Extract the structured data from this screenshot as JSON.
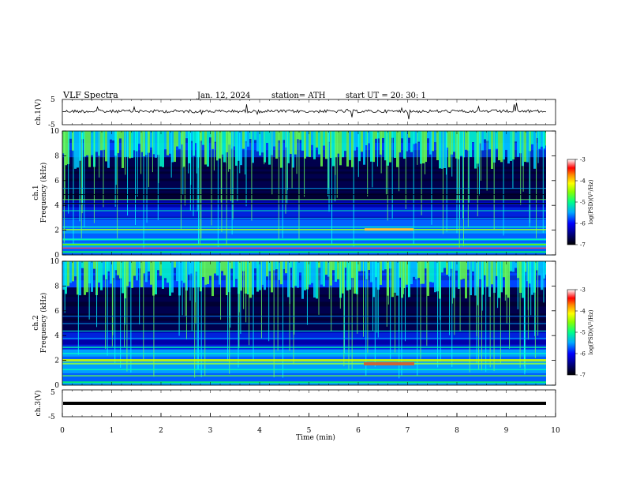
{
  "header": {
    "title": "VLF  Spectra",
    "date": "Jan. 12, 2024",
    "station": "station= ATH",
    "start": "start  UT  =    20: 30: 1"
  },
  "chart_data": [
    {
      "type": "line",
      "panel": "ch1-waveform",
      "ylabel": "ch.1(V)",
      "ylim": [
        -5,
        5
      ],
      "yticks": [
        "5",
        "-5"
      ],
      "xlim": [
        0,
        10
      ]
    },
    {
      "type": "heatmap",
      "panel": "ch1-spectrogram",
      "ylabel_line1": "ch.1",
      "ylabel_line2": "Frequency (kHz)",
      "ylim": [
        0,
        10
      ],
      "yticks": [
        "0",
        "2",
        "4",
        "6",
        "8",
        "10"
      ],
      "xlim": [
        0,
        10
      ],
      "colorbar": {
        "label": "log(PSD)(V²/Hz)",
        "range": [
          -7,
          -3
        ],
        "ticks": [
          "-3",
          "-4",
          "-5",
          "-6",
          "-7"
        ]
      }
    },
    {
      "type": "heatmap",
      "panel": "ch2-spectrogram",
      "ylabel_line1": "ch.2",
      "ylabel_line2": "Frequency (kHz)",
      "ylim": [
        0,
        10
      ],
      "yticks": [
        "0",
        "2",
        "4",
        "6",
        "8",
        "10"
      ],
      "xlim": [
        0,
        10
      ],
      "colorbar": {
        "label": "log(PSD)(V²/Hz)",
        "range": [
          -7,
          -3
        ],
        "ticks": [
          "-3",
          "-4",
          "-5",
          "-6",
          "-7"
        ]
      }
    },
    {
      "type": "line",
      "panel": "ch3-waveform",
      "ylabel": "ch.3(V)",
      "ylim": [
        -5,
        5
      ],
      "yticks": [
        "5",
        "-5"
      ],
      "xlim": [
        0,
        10
      ],
      "xlabel": "Time  (min)",
      "xticks": [
        "0",
        "1",
        "2",
        "3",
        "4",
        "5",
        "6",
        "7",
        "8",
        "9",
        "10"
      ]
    }
  ]
}
